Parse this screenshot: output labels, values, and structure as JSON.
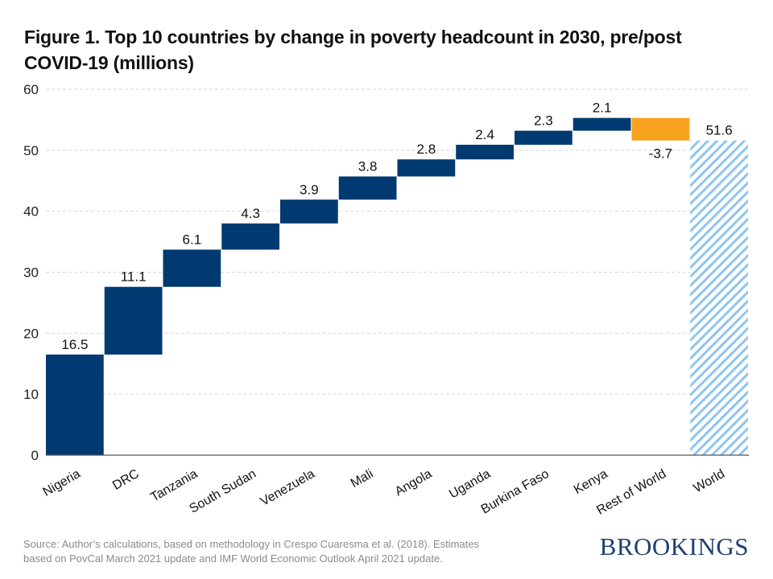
{
  "chart_data": {
    "type": "waterfall",
    "title": "Figure 1. Top 10 countries by change in poverty headcount in 2030, pre/post COVID-19 (millions)",
    "xlabel": "",
    "ylabel": "",
    "ylim": [
      0,
      60
    ],
    "yticks": [
      0,
      10,
      20,
      30,
      40,
      50,
      60
    ],
    "grid": true,
    "categories": [
      "Nigeria",
      "DRC",
      "Tanzania",
      "South Sudan",
      "Venezuela",
      "Mali",
      "Angola",
      "Uganda",
      "Burkina Faso",
      "Kenya",
      "Rest of World",
      "World"
    ],
    "values": [
      16.5,
      11.1,
      6.1,
      4.3,
      3.9,
      3.8,
      2.8,
      2.4,
      2.3,
      2.1,
      -3.7,
      51.6
    ],
    "labels": [
      "16.5",
      "11.1",
      "6.1",
      "4.3",
      "3.9",
      "3.8",
      "2.8",
      "2.4",
      "2.3",
      "2.1",
      "-3.7",
      "51.6"
    ],
    "total_index": 11,
    "colors": {
      "increase": "#003A70",
      "decrease": "#F7A21E",
      "total_hatch": "#8FC4EE"
    }
  },
  "footer": {
    "source_line1": "Source: Author’s calculations, based on methodology in Crespo Cuaresma et al. (2018). Estimates",
    "source_line2": "based on PovCal March 2021 update and IMF World Economic Outlook April 2021 update.",
    "brand": "BROOKINGS"
  }
}
